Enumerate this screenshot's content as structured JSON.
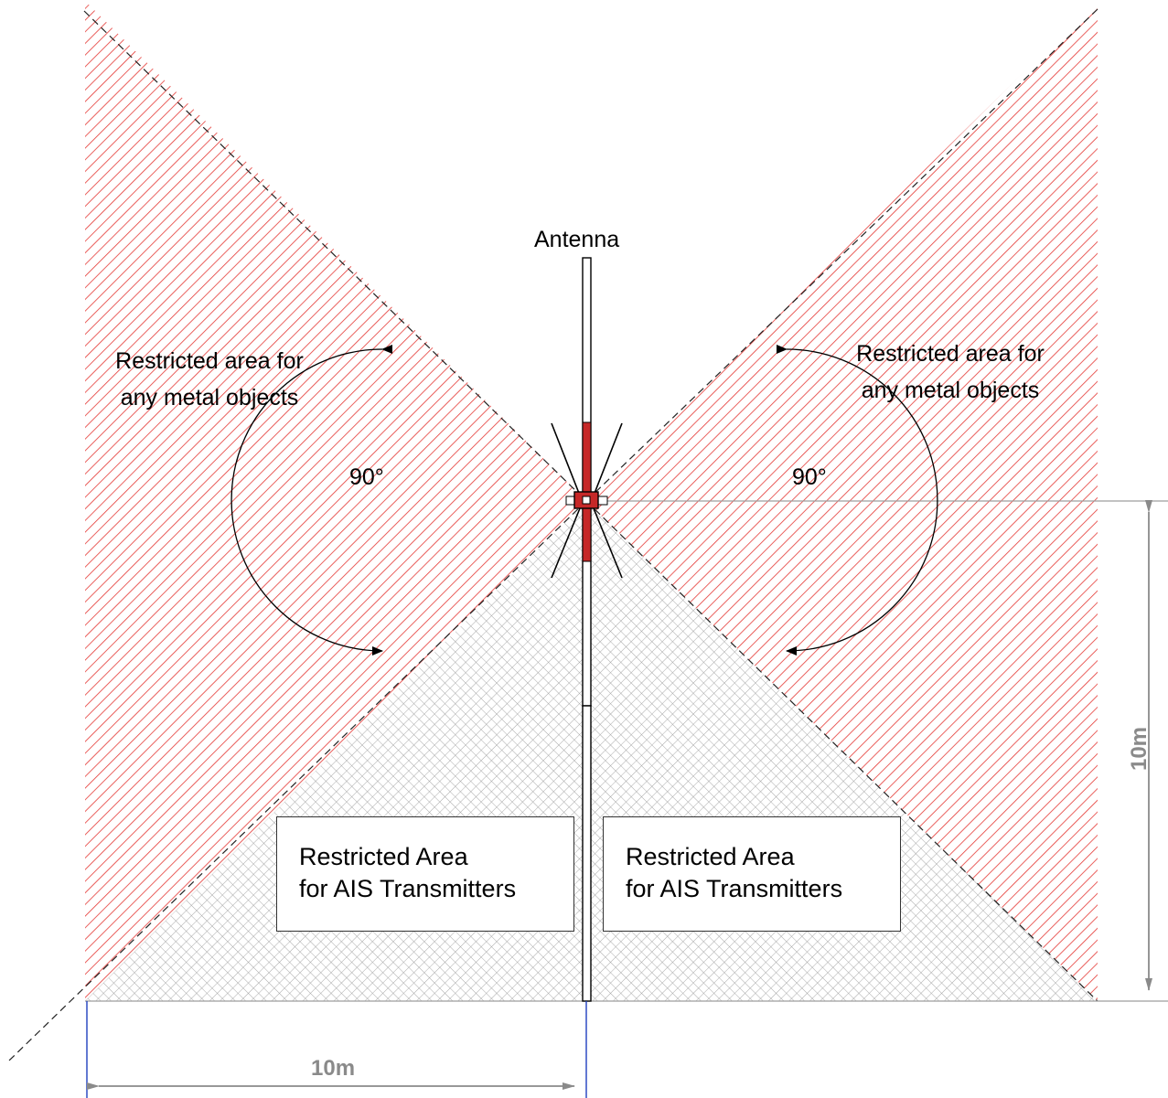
{
  "antenna": {
    "label": "Antenna"
  },
  "metal_zone": {
    "left": {
      "line1": "Restricted area for",
      "line2": "any metal objects"
    },
    "right": {
      "line1": "Restricted area for",
      "line2": "any metal objects"
    }
  },
  "angles": {
    "left": "90°",
    "right": "90°"
  },
  "ais_zone": {
    "left": {
      "line1": "Restricted Area",
      "line2": "for AIS Transmitters"
    },
    "right": {
      "line1": "Restricted Area",
      "line2": "for AIS Transmitters"
    }
  },
  "dimensions": {
    "horizontal": "10m",
    "vertical": "10m"
  },
  "colors": {
    "metal_hatch": "#e53935",
    "ais_crosshatch": "#9e9e9e",
    "antenna_red": "#c62828",
    "dimension_gray": "#8a8a8a",
    "dimension_blue": "#1f3fbf"
  }
}
